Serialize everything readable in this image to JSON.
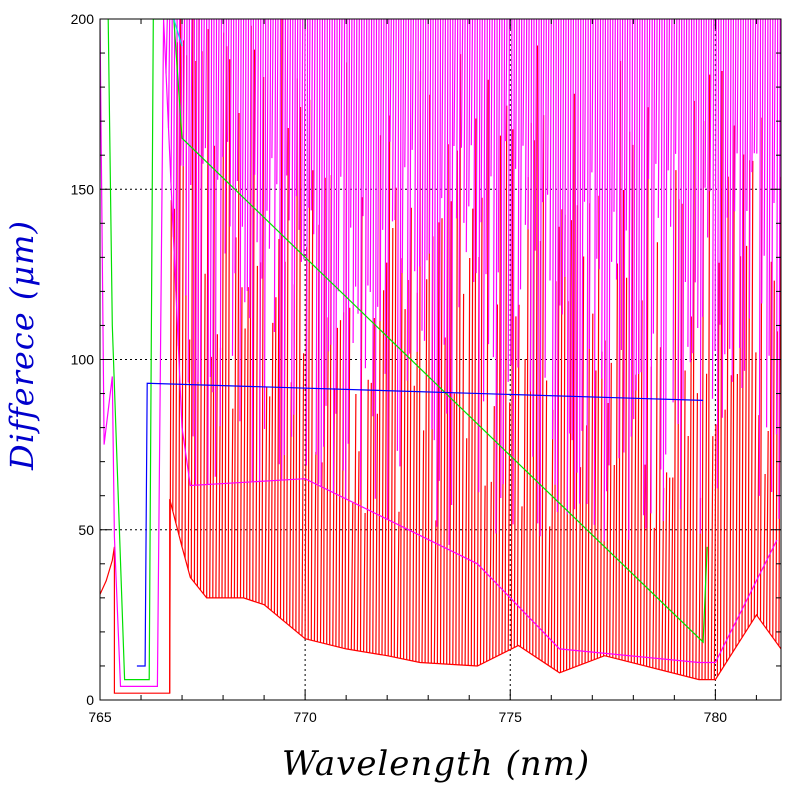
{
  "chart_data": {
    "type": "line",
    "xlabel": "Wavelength (nm)",
    "ylabel": "Differece (μm)",
    "xlim": [
      765,
      781.6
    ],
    "ylim": [
      0,
      200
    ],
    "x_ticks": [
      765,
      770,
      775,
      780
    ],
    "x_tick_labels": [
      "765",
      "770",
      "775",
      "780"
    ],
    "y_ticks": [
      0,
      50,
      100,
      150,
      200
    ],
    "y_tick_labels": [
      "0",
      "50",
      "100",
      "150",
      "200"
    ],
    "grid": "dotted",
    "colors": {
      "red": "#ff0000",
      "magenta": "#ff00ff",
      "green": "#00e000",
      "cyan": "#00e0e0",
      "blue": "#0000ff",
      "ylabel": "#0000cc"
    },
    "series": [
      {
        "color": "red",
        "envelope_floor": [
          [
            765.0,
            31
          ],
          [
            765.15,
            35
          ],
          [
            765.3,
            41
          ],
          [
            765.35,
            45
          ],
          [
            765.35,
            2
          ],
          [
            766.7,
            2
          ],
          [
            766.7,
            59
          ],
          [
            767.0,
            45
          ],
          [
            767.2,
            36
          ],
          [
            767.6,
            30
          ],
          [
            768.5,
            30
          ],
          [
            769.0,
            28
          ],
          [
            770.0,
            18
          ],
          [
            771.0,
            15
          ],
          [
            772.0,
            13
          ],
          [
            772.8,
            11
          ],
          [
            774.2,
            10
          ],
          [
            775.2,
            16
          ],
          [
            776.2,
            8
          ],
          [
            777.3,
            13
          ],
          [
            779.6,
            6
          ],
          [
            780.0,
            6
          ],
          [
            781.0,
            25
          ],
          [
            781.6,
            15
          ]
        ],
        "note_points": [
          [
            767.0,
            200
          ],
          [
            768.0,
            145
          ],
          [
            770.0,
            120
          ],
          [
            774.0,
            110
          ],
          [
            778.0,
            90
          ]
        ]
      },
      {
        "color": "magenta",
        "envelope_floor": [
          [
            765.0,
            200
          ],
          [
            765.1,
            75
          ],
          [
            765.3,
            95
          ],
          [
            765.35,
            48
          ],
          [
            765.5,
            4
          ],
          [
            766.4,
            4
          ],
          [
            766.55,
            200
          ],
          [
            767.0,
            80
          ],
          [
            767.2,
            63
          ],
          [
            770.0,
            65
          ],
          [
            774.2,
            40
          ],
          [
            776.2,
            15
          ],
          [
            779.6,
            11
          ],
          [
            780.0,
            11
          ],
          [
            781.5,
            47
          ]
        ]
      },
      {
        "color": "green",
        "envelope_floor": [
          [
            765.2,
            200
          ],
          [
            765.3,
            110
          ],
          [
            765.6,
            6
          ],
          [
            766.2,
            6
          ],
          [
            766.3,
            200
          ],
          [
            766.8,
            200
          ],
          [
            767.0,
            165
          ],
          [
            779.7,
            17
          ],
          [
            779.8,
            45
          ]
        ]
      },
      {
        "color": "cyan",
        "envelope_floor": [
          [
            766.8,
            200
          ],
          [
            767.0,
            192
          ]
        ]
      },
      {
        "color": "blue",
        "envelope_floor": [
          [
            765.9,
            10
          ],
          [
            766.1,
            10
          ],
          [
            766.15,
            93
          ],
          [
            779.7,
            88
          ]
        ]
      }
    ]
  }
}
